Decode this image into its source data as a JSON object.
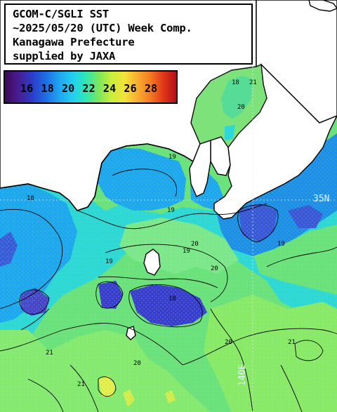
{
  "title": {
    "line1": "GCOM-C/SGLI SST",
    "line2": "~2025/05/20 (UTC) Week Comp.",
    "line3": "Kanagawa Prefecture",
    "line4": "supplied by JAXA"
  },
  "legend": {
    "labels": [
      "16",
      "18",
      "20",
      "22",
      "24",
      "26",
      "28"
    ],
    "colors": {
      "land": "#ffffff",
      "coast": "#000000",
      "sst_cold": "#3a0a58",
      "sst_mid": "#22d2ee",
      "sst_warm": "#f4e23a",
      "sst_hot": "#b0101a",
      "grid": "#d8ecff"
    }
  },
  "grid": {
    "lat_label": "35N",
    "lon_label": "140E"
  },
  "contours": {
    "labels": [
      "18",
      "19",
      "20",
      "21",
      "19",
      "20",
      "21",
      "18",
      "19",
      "20",
      "21",
      "19",
      "18",
      "20",
      "21",
      "19",
      "20"
    ]
  }
}
